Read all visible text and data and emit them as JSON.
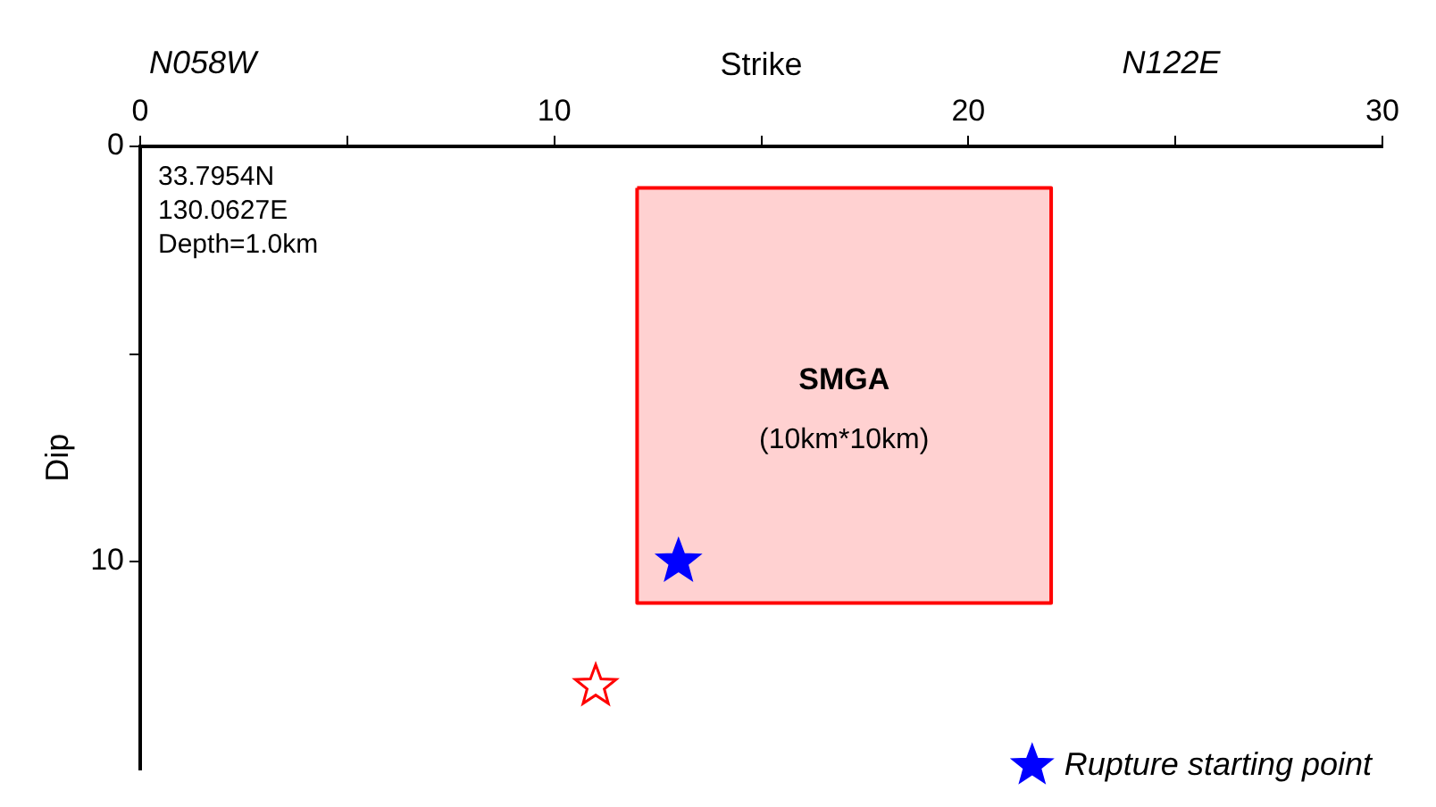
{
  "chart_data": {
    "type": "scatter",
    "xlabel": "Strike",
    "ylabel": "Dip",
    "xlim": [
      0,
      30
    ],
    "xticks": [
      0,
      {
        "value": 5,
        "label": null
      },
      10,
      {
        "value": 15,
        "label": null
      },
      20,
      {
        "value": 25,
        "label": null
      },
      30
    ],
    "ylim": [
      15,
      0
    ],
    "yticks": [
      0,
      {
        "value": 5,
        "label": null
      },
      10
    ],
    "grid": false,
    "legend": "bottom right",
    "series": [
      {
        "type": "area",
        "color": "#ff0000",
        "x": [
          12,
          22,
          22,
          12,
          12
        ],
        "values": [
          1,
          1,
          11,
          11,
          1
        ]
      },
      {
        "name": "Rupture starting point",
        "color": "#0000ff",
        "marker": "star",
        "x": [
          13
        ],
        "values": [
          10
        ]
      },
      {
        "color": "#ff0000",
        "marker": "star",
        "x": [
          11
        ],
        "values": [
          13
        ]
      }
    ],
    "annotations": [
      "N058W",
      "N122E",
      "33.7954N\n130.0627E\nDepth=1.0km",
      "SMGA",
      "(10km*10km)"
    ]
  }
}
